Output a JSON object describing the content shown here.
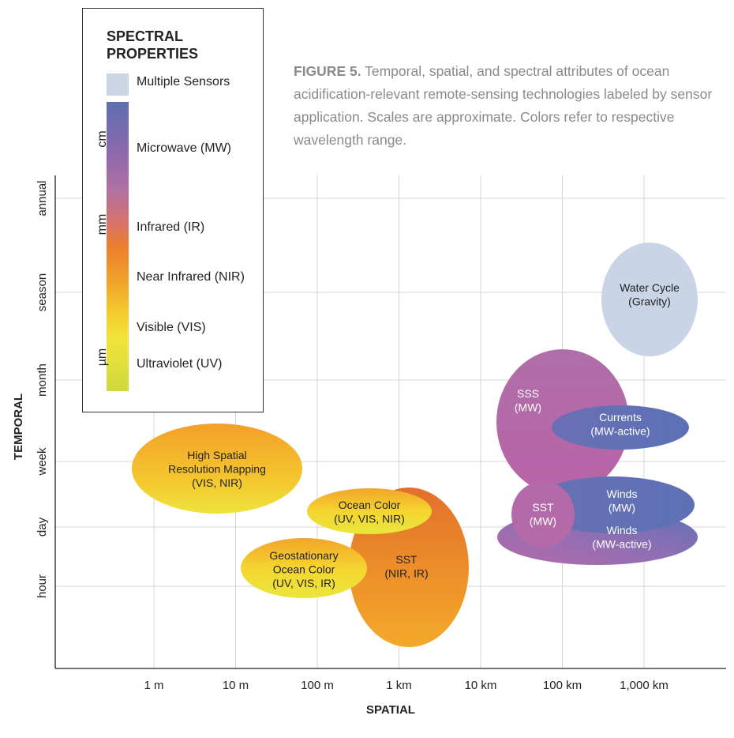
{
  "caption": {
    "label": "FIGURE 5.",
    "text": "Temporal, spatial, and spectral attributes of ocean acidification-relevant remote-sensing technologies labeled by sensor application. Scales are approximate. Colors refer to respective wavelength range."
  },
  "legend": {
    "title": "SPECTRAL PROPERTIES",
    "multiple_sensors": "Multiple Sensors",
    "bands": {
      "mw": "Microwave (MW)",
      "ir": "Infrared (IR)",
      "nir": "Near Infrared  (NIR)",
      "vis": "Visible  (VIS)",
      "uv": "Ultraviolet (UV)"
    },
    "units": {
      "cm": "cm",
      "mm": "mm",
      "um": "µm"
    },
    "colors": {
      "multiple": "#cbd5e6",
      "mw": "#5d6fb0",
      "ir": "#ec7f2c",
      "vis": "#f2e43a",
      "uv": "#cfd83c"
    }
  },
  "chart_data": {
    "type": "scatter",
    "xlabel": "SPATIAL",
    "ylabel": "TEMPORAL",
    "x_ticks": [
      "1 m",
      "10 m",
      "100 m",
      "1 km",
      "10 km",
      "100 km",
      "1,000 km"
    ],
    "y_ticks": [
      "hour",
      "day",
      "week",
      "month",
      "season",
      "annual"
    ],
    "x_scale": "log",
    "grid": true,
    "ellipses": [
      {
        "label": [
          "Water Cycle",
          "(Gravity)"
        ],
        "color": "multiple",
        "x_range": [
          "50 km",
          "1,000 km"
        ],
        "y_range": [
          "month",
          "annual"
        ]
      },
      {
        "label": [
          "SSS",
          "(MW)"
        ],
        "color": "mw",
        "x_range": [
          "10 km",
          "100 km"
        ],
        "y_range": [
          "day",
          "month"
        ]
      },
      {
        "label": [
          "Currents",
          "(MW-active)"
        ],
        "color": "mw",
        "x_range": [
          "10 km",
          "1,000 km"
        ],
        "y_range": [
          "week",
          "week"
        ]
      },
      {
        "label": [
          "Winds",
          "(MW)"
        ],
        "color": "mw",
        "x_range": [
          "10 km",
          "1,000 km"
        ],
        "y_range": [
          "day",
          "week"
        ]
      },
      {
        "label": [
          "Winds",
          "(MW-active)"
        ],
        "color": "mw",
        "x_range": [
          "10 km",
          "1,000 km"
        ],
        "y_range": [
          "hour",
          "day"
        ]
      },
      {
        "label": [
          "SST",
          "(MW)"
        ],
        "color": "mw",
        "x_range": [
          "10 km",
          "100 km"
        ],
        "y_range": [
          "hour",
          "day"
        ]
      },
      {
        "label": [
          "High Spatial",
          "Resolution Mapping",
          "(VIS, NIR)"
        ],
        "color": "vis",
        "x_range": [
          "1 m",
          "100 m"
        ],
        "y_range": [
          "day",
          "week"
        ]
      },
      {
        "label": [
          "Ocean Color",
          "(UV, VIS, NIR)"
        ],
        "color": "vis",
        "x_range": [
          "100 m",
          "10 km"
        ],
        "y_range": [
          "day",
          "day"
        ]
      },
      {
        "label": [
          "SST",
          "(NIR, IR)"
        ],
        "color": "ir",
        "x_range": [
          "100 m",
          "10 km"
        ],
        "y_range": [
          "hour",
          "week"
        ]
      },
      {
        "label": [
          "Geostationary",
          "Ocean Color",
          "(UV, VIS, IR)"
        ],
        "color": "vis",
        "x_range": [
          "10 m",
          "1 km"
        ],
        "y_range": [
          "hour",
          "day"
        ]
      }
    ]
  }
}
